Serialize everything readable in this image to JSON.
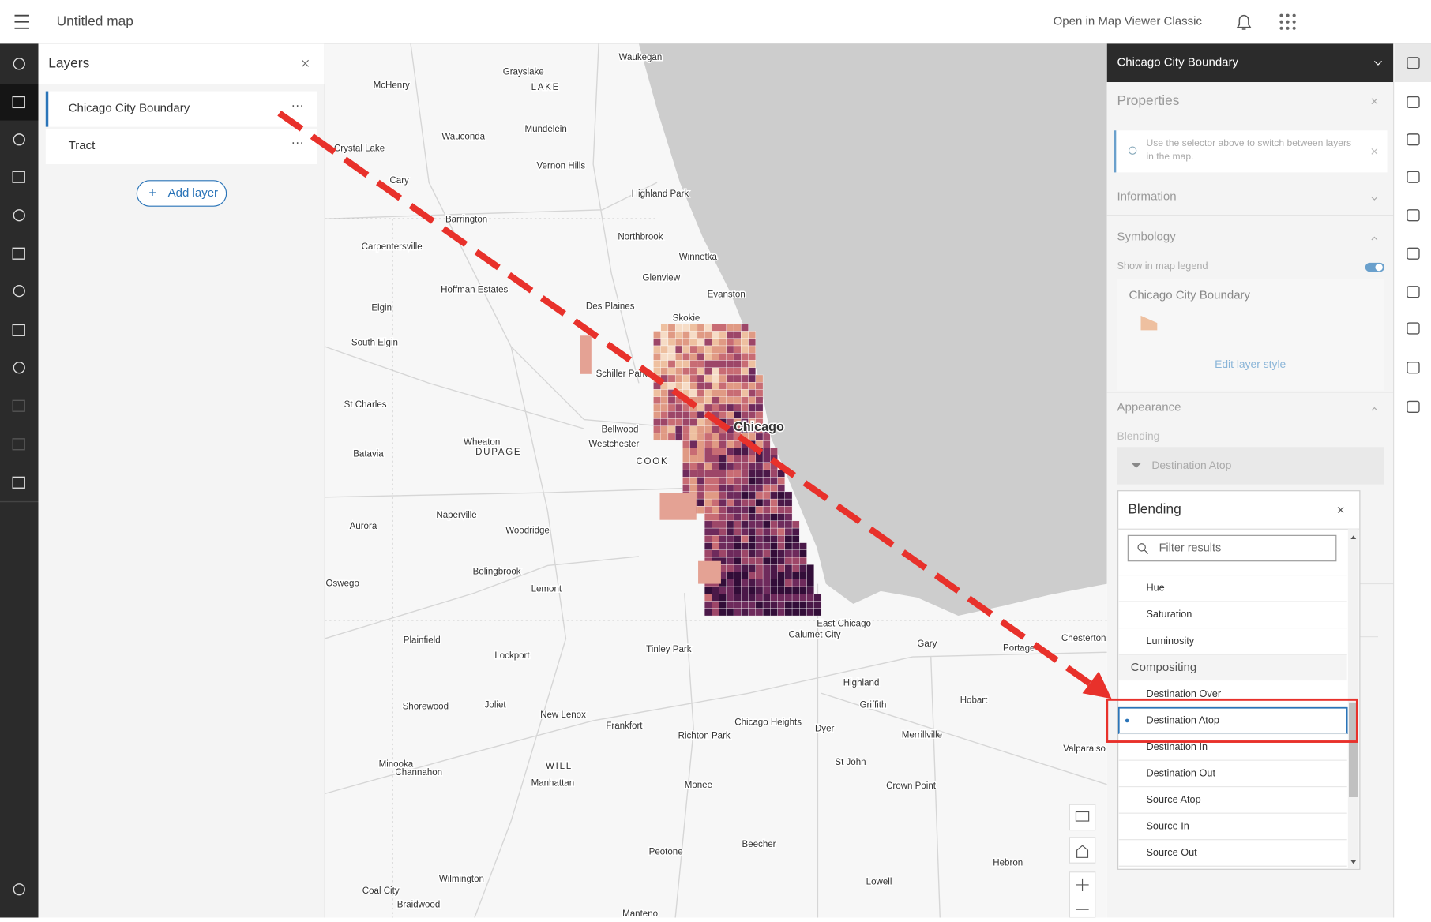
{
  "header": {
    "title": "Untitled map",
    "classic_link": "Open in Map Viewer Classic"
  },
  "layers_panel": {
    "title": "Layers",
    "layers": [
      "Chicago City Boundary",
      "Tract"
    ],
    "add_button": "Add layer"
  },
  "map": {
    "labels": [
      "Waukegan",
      "Grayslake",
      "LAKE",
      "McHenry",
      "Wauconda",
      "Mundelein",
      "Crystal Lake",
      "Vernon Hills",
      "Cary",
      "Highland Park",
      "Barrington",
      "Northbrook",
      "Carpentersville",
      "Winnetka",
      "Glenview",
      "Hoffman Estates",
      "Evanston",
      "Des Plaines",
      "Elgin",
      "Skokie",
      "South Elgin",
      "Schiller Park",
      "Chicago",
      "St Charles",
      "Bellwood",
      "Westchester",
      "Wheaton",
      "DUPAGE",
      "Batavia",
      "COOK",
      "Naperville",
      "Aurora",
      "Woodridge",
      "Bolingbrook",
      "Oswego",
      "Lemont",
      "East Chicago",
      "Calumet City",
      "Chesterton",
      "Plainfield",
      "Gary",
      "Portage",
      "Lockport",
      "Tinley Park",
      "Highland",
      "Shorewood",
      "Joliet",
      "Hobart",
      "Griffith",
      "New Lenox",
      "Chicago Heights",
      "Frankfort",
      "Richton Park",
      "Dyer",
      "Merrillville",
      "Valparaiso",
      "WILL",
      "Minooka",
      "Channahon",
      "Manhattan",
      "St John",
      "Monee",
      "Crown Point",
      "Peotone",
      "Beecher",
      "Hebron",
      "Coal City",
      "Wilmington",
      "Braidwood",
      "Lowell",
      "Manteno"
    ]
  },
  "properties_panel": {
    "layer_selector": "Chicago City Boundary",
    "title": "Properties",
    "tip": "Use the selector above to switch between layers in the map.",
    "information": "Information",
    "symbology": "Symbology",
    "show_in_legend": "Show in map legend",
    "symbol_layer": "Chicago City Boundary",
    "edit_style": "Edit layer style",
    "appearance": "Appearance",
    "blending_label": "Blending",
    "blending_value": "Destination Atop"
  },
  "blending_dropdown": {
    "title": "Blending",
    "filter_placeholder": "Filter results",
    "items": [
      "Hue",
      "Saturation",
      "Luminosity"
    ],
    "group": "Compositing",
    "compositing_items": [
      "Destination Over",
      "Destination Atop",
      "Destination In",
      "Destination Out",
      "Source Atop",
      "Source In",
      "Source Out"
    ]
  }
}
